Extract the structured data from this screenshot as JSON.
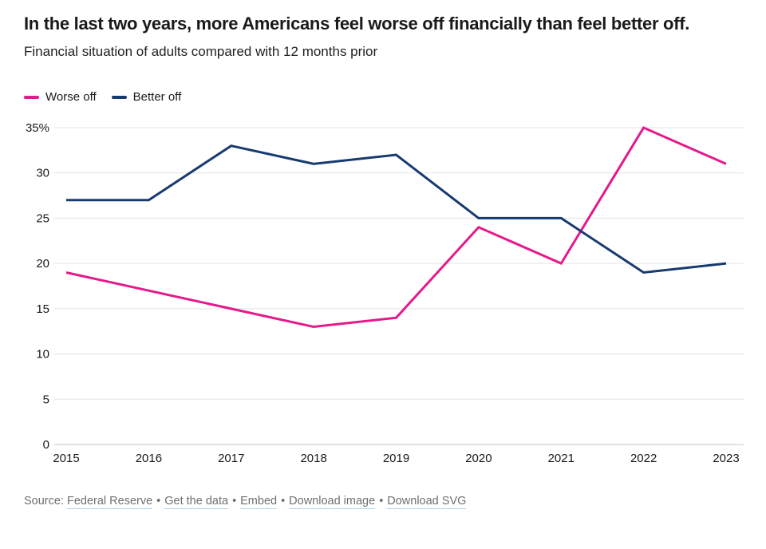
{
  "header": {
    "title": "In the last two years, more Americans feel worse off financially than feel better off.",
    "subtitle": "Financial situation of adults compared with 12 months prior"
  },
  "chart_data": {
    "type": "line",
    "categories": [
      "2015",
      "2016",
      "2017",
      "2018",
      "2019",
      "2020",
      "2021",
      "2022",
      "2023"
    ],
    "series": [
      {
        "name": "Worse off",
        "color": "#e5198c",
        "values": [
          19,
          17,
          15,
          13,
          14,
          24,
          20,
          35,
          31
        ]
      },
      {
        "name": "Better off",
        "color": "#173a70",
        "values": [
          27,
          27,
          33,
          31,
          32,
          25,
          25,
          19,
          20
        ]
      }
    ],
    "title": "In the last two years, more Americans feel worse off financially than feel better off.",
    "subtitle": "Financial situation of adults compared with 12 months prior",
    "xlabel": "",
    "ylabel": "",
    "ylim": [
      0,
      35
    ],
    "yticks": [
      0,
      5,
      10,
      15,
      20,
      25,
      30,
      35
    ],
    "ytick_top_label": "35%",
    "grid": true,
    "legend_position": "top-left"
  },
  "footer": {
    "prefix": "Source:",
    "separator": "•",
    "links": [
      "Federal Reserve",
      "Get the data",
      "Embed",
      "Download image",
      "Download SVG"
    ]
  }
}
